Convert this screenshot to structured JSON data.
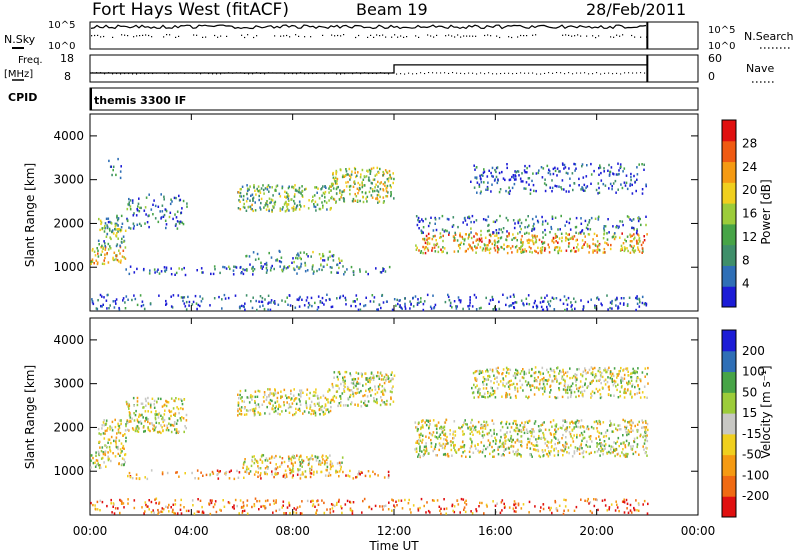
{
  "header": {
    "title": "Fort Hays West (fitACF)",
    "beam": "Beam 19",
    "date": "28/Feb/2011"
  },
  "top_panels": {
    "nsky_label": "N.Sky",
    "nsearch_label": "N.Search",
    "count_ticks": [
      "10^5",
      "10^0"
    ],
    "freq_label": "Freq.",
    "freq_unit": "[MHz]",
    "freq_ticks": [
      "18",
      "8"
    ],
    "nave_label": "Nave",
    "nave_ticks": [
      "60",
      "0"
    ],
    "cpid_label": "CPID",
    "cpid_text": "themis 3300 IF"
  },
  "chart_data": [
    {
      "type": "heatmap",
      "name": "power",
      "ylabel": "Slant Range [km]",
      "y_ticks": [
        "1000",
        "2000",
        "3000",
        "4000"
      ],
      "ylim": [
        0,
        4500
      ],
      "xlim": [
        0,
        24
      ],
      "colorbar": {
        "label": "Power [dB]",
        "ticks": [
          "4",
          "8",
          "12",
          "16",
          "20",
          "24",
          "28"
        ],
        "colors": [
          "#1c1cd6",
          "#2f6fb6",
          "#3f8f6a",
          "#47a447",
          "#9ccc3a",
          "#f0cf1e",
          "#f59a12",
          "#ef5a12",
          "#e01010"
        ]
      },
      "regions": [
        {
          "t": [
            0.0,
            1.4
          ],
          "r": [
            1100,
            1500
          ],
          "level": 0.6
        },
        {
          "t": [
            0.3,
            1.4
          ],
          "r": [
            1500,
            2200
          ],
          "level": 0.35
        },
        {
          "t": [
            0.7,
            1.2
          ],
          "r": [
            3050,
            3500
          ],
          "level": 0.2
        },
        {
          "t": [
            1.4,
            3.8
          ],
          "r": [
            1900,
            2700
          ],
          "level": 0.2
        },
        {
          "t": [
            1.3,
            12.0
          ],
          "r": [
            850,
            1050
          ],
          "level": 0.2
        },
        {
          "t": [
            6.0,
            10.0
          ],
          "r": [
            950,
            1400
          ],
          "level": 0.3
        },
        {
          "t": [
            5.8,
            9.5
          ],
          "r": [
            2300,
            2900
          ],
          "level": 0.4
        },
        {
          "t": [
            9.5,
            12.0
          ],
          "r": [
            2500,
            3300
          ],
          "level": 0.5
        },
        {
          "t": [
            12.8,
            22.0
          ],
          "r": [
            1350,
            1800
          ],
          "level": 0.65
        },
        {
          "t": [
            12.8,
            22.0
          ],
          "r": [
            1800,
            2200
          ],
          "level": 0.2
        },
        {
          "t": [
            15.0,
            22.0
          ],
          "r": [
            2700,
            3400
          ],
          "level": 0.15
        },
        {
          "t": [
            0.0,
            22.0
          ],
          "r": [
            50,
            400
          ],
          "level": 0.1
        }
      ]
    },
    {
      "type": "heatmap",
      "name": "velocity",
      "ylabel": "Slant Range [km]",
      "y_ticks": [
        "1000",
        "2000",
        "3000",
        "4000"
      ],
      "ylim": [
        0,
        4500
      ],
      "xlim": [
        0,
        24
      ],
      "colorbar": {
        "label": "Velocity [m s⁻¹]",
        "ticks": [
          "-200",
          "-100",
          "-50",
          "-15",
          "15",
          "50",
          "100",
          "200"
        ],
        "colors": [
          "#e01010",
          "#f06a12",
          "#f59a12",
          "#f0cf1e",
          "#c8c8c4",
          "#9ccc3a",
          "#47a447",
          "#2f6fb6",
          "#1c1cd6"
        ]
      },
      "regions": [
        {
          "t": [
            0.0,
            1.4
          ],
          "r": [
            1100,
            1500
          ],
          "level": 0.5
        },
        {
          "t": [
            0.3,
            1.4
          ],
          "r": [
            1500,
            2200
          ],
          "level": 0.5
        },
        {
          "t": [
            1.4,
            3.8
          ],
          "r": [
            1900,
            2700
          ],
          "level": 0.5
        },
        {
          "t": [
            1.3,
            12.0
          ],
          "r": [
            850,
            1050
          ],
          "level": 0.3
        },
        {
          "t": [
            6.0,
            10.0
          ],
          "r": [
            950,
            1400
          ],
          "level": 0.45
        },
        {
          "t": [
            5.8,
            9.5
          ],
          "r": [
            2300,
            2900
          ],
          "level": 0.5
        },
        {
          "t": [
            9.5,
            12.0
          ],
          "r": [
            2500,
            3300
          ],
          "level": 0.5
        },
        {
          "t": [
            12.8,
            22.0
          ],
          "r": [
            1350,
            2200
          ],
          "level": 0.5
        },
        {
          "t": [
            15.0,
            22.0
          ],
          "r": [
            2700,
            3400
          ],
          "level": 0.5
        },
        {
          "t": [
            0.0,
            22.0
          ],
          "r": [
            50,
            400
          ],
          "level": 0.2
        }
      ]
    }
  ],
  "frequency_series": {
    "x": [
      0,
      12,
      12,
      22
    ],
    "y": [
      10,
      10,
      14.5,
      14.5
    ]
  },
  "xaxis": {
    "label": "Time UT",
    "ticks": [
      "00:00",
      "04:00",
      "08:00",
      "12:00",
      "16:00",
      "20:00",
      "00:00"
    ]
  }
}
